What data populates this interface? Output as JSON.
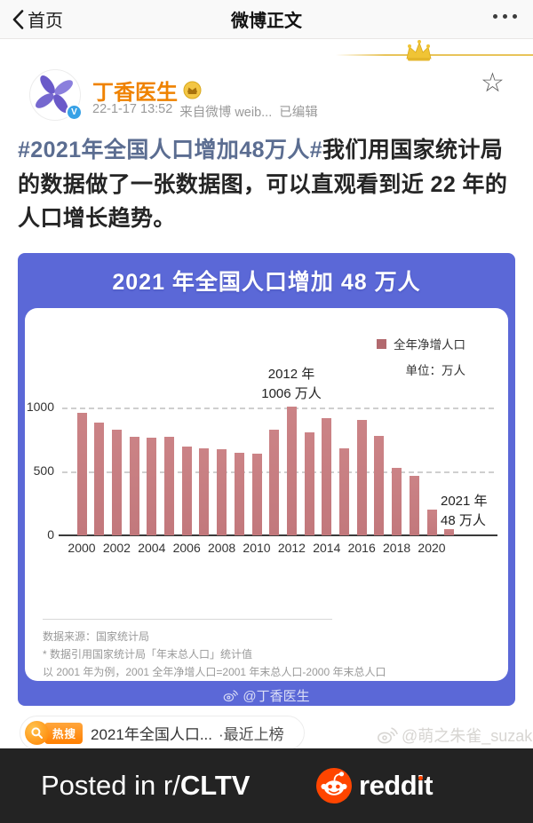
{
  "nav": {
    "back_label": "首页",
    "title": "微博正文"
  },
  "post": {
    "author": "丁香医生",
    "timestamp": "22-1-17 13:52",
    "source": "来自微博 weib...",
    "edited": "已编辑",
    "hashtag": "#2021年全国人口增加48万人#",
    "body": "我们用国家统计局的数据做了一张数据图，可以直观看到近 22 年的人口增长趋势。"
  },
  "chart_data": {
    "type": "bar",
    "title": "2021 年全国人口增加 48 万人",
    "x": [
      2000,
      2001,
      2002,
      2003,
      2004,
      2005,
      2006,
      2007,
      2008,
      2009,
      2010,
      2011,
      2012,
      2013,
      2014,
      2015,
      2016,
      2017,
      2018,
      2019,
      2020,
      2021
    ],
    "values": [
      957,
      884,
      826,
      774,
      761,
      768,
      692,
      681,
      673,
      648,
      641,
      825,
      1006,
      804,
      920,
      680,
      906,
      779,
      530,
      467,
      204,
      48
    ],
    "x_ticks": [
      2000,
      2002,
      2004,
      2006,
      2008,
      2010,
      2012,
      2014,
      2016,
      2018,
      2020
    ],
    "y_ticks": [
      0,
      500,
      1000
    ],
    "ylim": [
      0,
      1050
    ],
    "unit_label": "单位：万人",
    "legend": [
      "全年净增人口"
    ],
    "legend_position": "top-right",
    "grid": "dashed-horizontal",
    "bar_color": "#c57b7f",
    "annotations": [
      {
        "line1": "2012 年",
        "line2": "1006 万人",
        "target_year": 2012
      },
      {
        "line1": "2021 年",
        "line2": "48 万人",
        "target_year": 2021
      }
    ],
    "footnotes": [
      "数据来源：国家统计局",
      "* 数据引用国家统计局「年末总人口」统计值",
      "以 2001 年为例，2001 全年净增人口=2001 年末总人口-2000 年末总人口"
    ],
    "watermark": "@丁香医生"
  },
  "hot_search": {
    "badge": "热搜",
    "text": "2021年全国人口...",
    "suffix": "·最近上榜"
  },
  "photo_watermark": "@萌之朱雀_suzaku",
  "banner": {
    "prefix": "Posted in r/",
    "subreddit": "CLTV",
    "brand": "reddit"
  },
  "colors": {
    "accent_blue": "#5b68d7",
    "bar": "#c57b7f",
    "author_orange": "#ef8200",
    "hashtag_blue": "#5b6d91",
    "hot_orange": "#ff8200",
    "reddit_orange": "#ff4500",
    "banner_bg": "#232323"
  }
}
